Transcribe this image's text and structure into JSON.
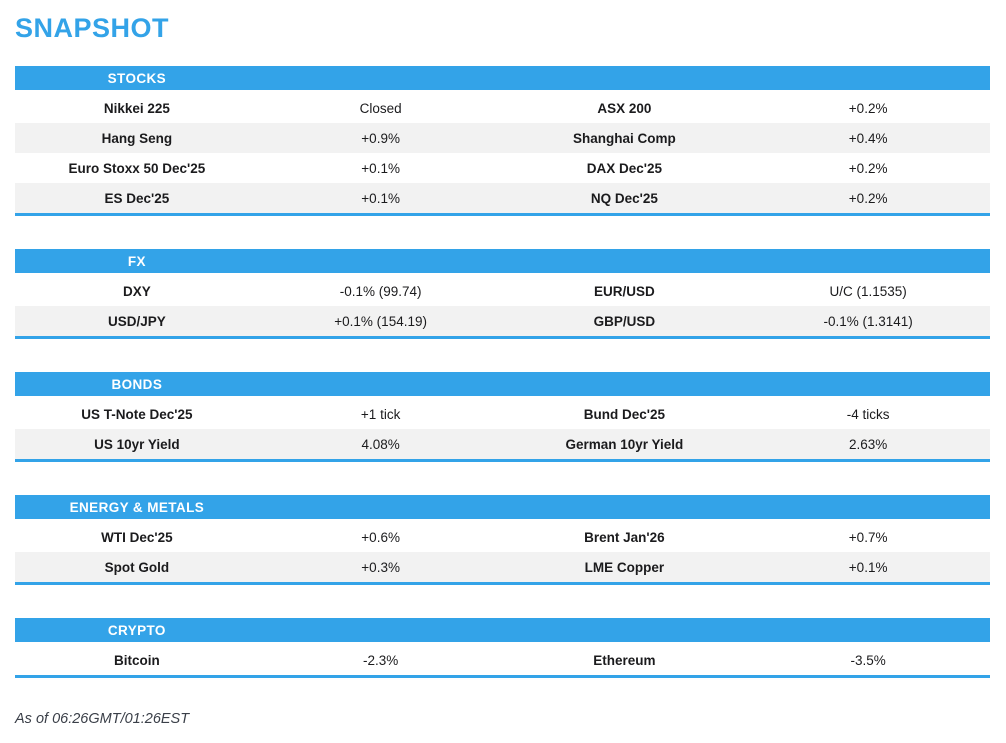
{
  "page": {
    "title": "SNAPSHOT",
    "footer": "As of 06:26GMT/01:26EST"
  },
  "colors": {
    "accent": "#33a3e8",
    "row_alt": "#f2f2f2",
    "text": "#1b1b1d"
  },
  "sections": [
    {
      "label": "STOCKS",
      "rows": [
        [
          "Nikkei 225",
          "Closed",
          "ASX 200",
          "+0.2%"
        ],
        [
          "Hang Seng",
          "+0.9%",
          "Shanghai Comp",
          "+0.4%"
        ],
        [
          "Euro Stoxx 50 Dec'25",
          "+0.1%",
          "DAX Dec'25",
          "+0.2%"
        ],
        [
          "ES Dec'25",
          "+0.1%",
          "NQ Dec'25",
          "+0.2%"
        ]
      ]
    },
    {
      "label": "FX",
      "rows": [
        [
          "DXY",
          "-0.1% (99.74)",
          "EUR/USD",
          "U/C (1.1535)"
        ],
        [
          "USD/JPY",
          "+0.1% (154.19)",
          "GBP/USD",
          "-0.1% (1.3141)"
        ]
      ]
    },
    {
      "label": "BONDS",
      "rows": [
        [
          "US T-Note Dec'25",
          "+1 tick",
          "Bund Dec'25",
          "-4 ticks"
        ],
        [
          "US 10yr Yield",
          "4.08%",
          "German 10yr Yield",
          "2.63%"
        ]
      ]
    },
    {
      "label": "ENERGY & METALS",
      "rows": [
        [
          "WTI Dec'25",
          "+0.6%",
          "Brent Jan'26",
          "+0.7%"
        ],
        [
          "Spot Gold",
          "+0.3%",
          "LME Copper",
          "+0.1%"
        ]
      ]
    },
    {
      "label": "CRYPTO",
      "rows": [
        [
          "Bitcoin",
          "-2.3%",
          "Ethereum",
          "-3.5%"
        ]
      ]
    }
  ]
}
